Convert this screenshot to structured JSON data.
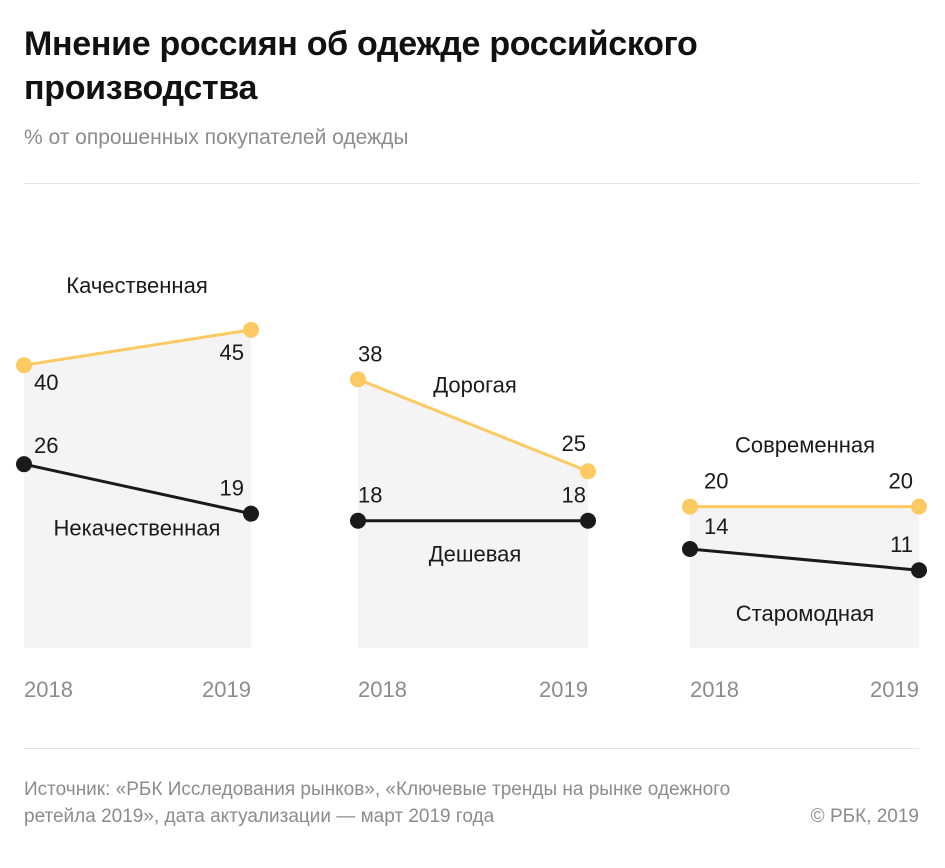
{
  "title": "Мнение россиян об одежде российского производства",
  "subtitle": "% от опрошенных покупателей одежды",
  "colors": {
    "positive": "#fcc962",
    "negative": "#1a1a1a",
    "panel_bg": "#f4f4f4",
    "axis_text": "#8c8c8c"
  },
  "chart_data": {
    "type": "line",
    "x": [
      "2018",
      "2019"
    ],
    "ylim": [
      0,
      57
    ],
    "panels": [
      {
        "series": [
          {
            "name": "Качественная",
            "values": [
              40,
              45
            ],
            "tone": "positive"
          },
          {
            "name": "Некачественная",
            "values": [
              26,
              19
            ],
            "tone": "negative"
          }
        ]
      },
      {
        "series": [
          {
            "name": "Дорогая",
            "values": [
              38,
              25
            ],
            "tone": "positive"
          },
          {
            "name": "Дешевая",
            "values": [
              18,
              18
            ],
            "tone": "negative"
          }
        ]
      },
      {
        "series": [
          {
            "name": "Современная",
            "values": [
              20,
              20
            ],
            "tone": "positive"
          },
          {
            "name": "Старомодная",
            "values": [
              14,
              11
            ],
            "tone": "negative"
          }
        ]
      }
    ]
  },
  "footer": {
    "source": "Источник: «РБК Исследования рынков», «Ключевые тренды на рынке одежного ретейла 2019», дата актуализации — март 2019 года",
    "copyright": "© РБК, 2019"
  }
}
